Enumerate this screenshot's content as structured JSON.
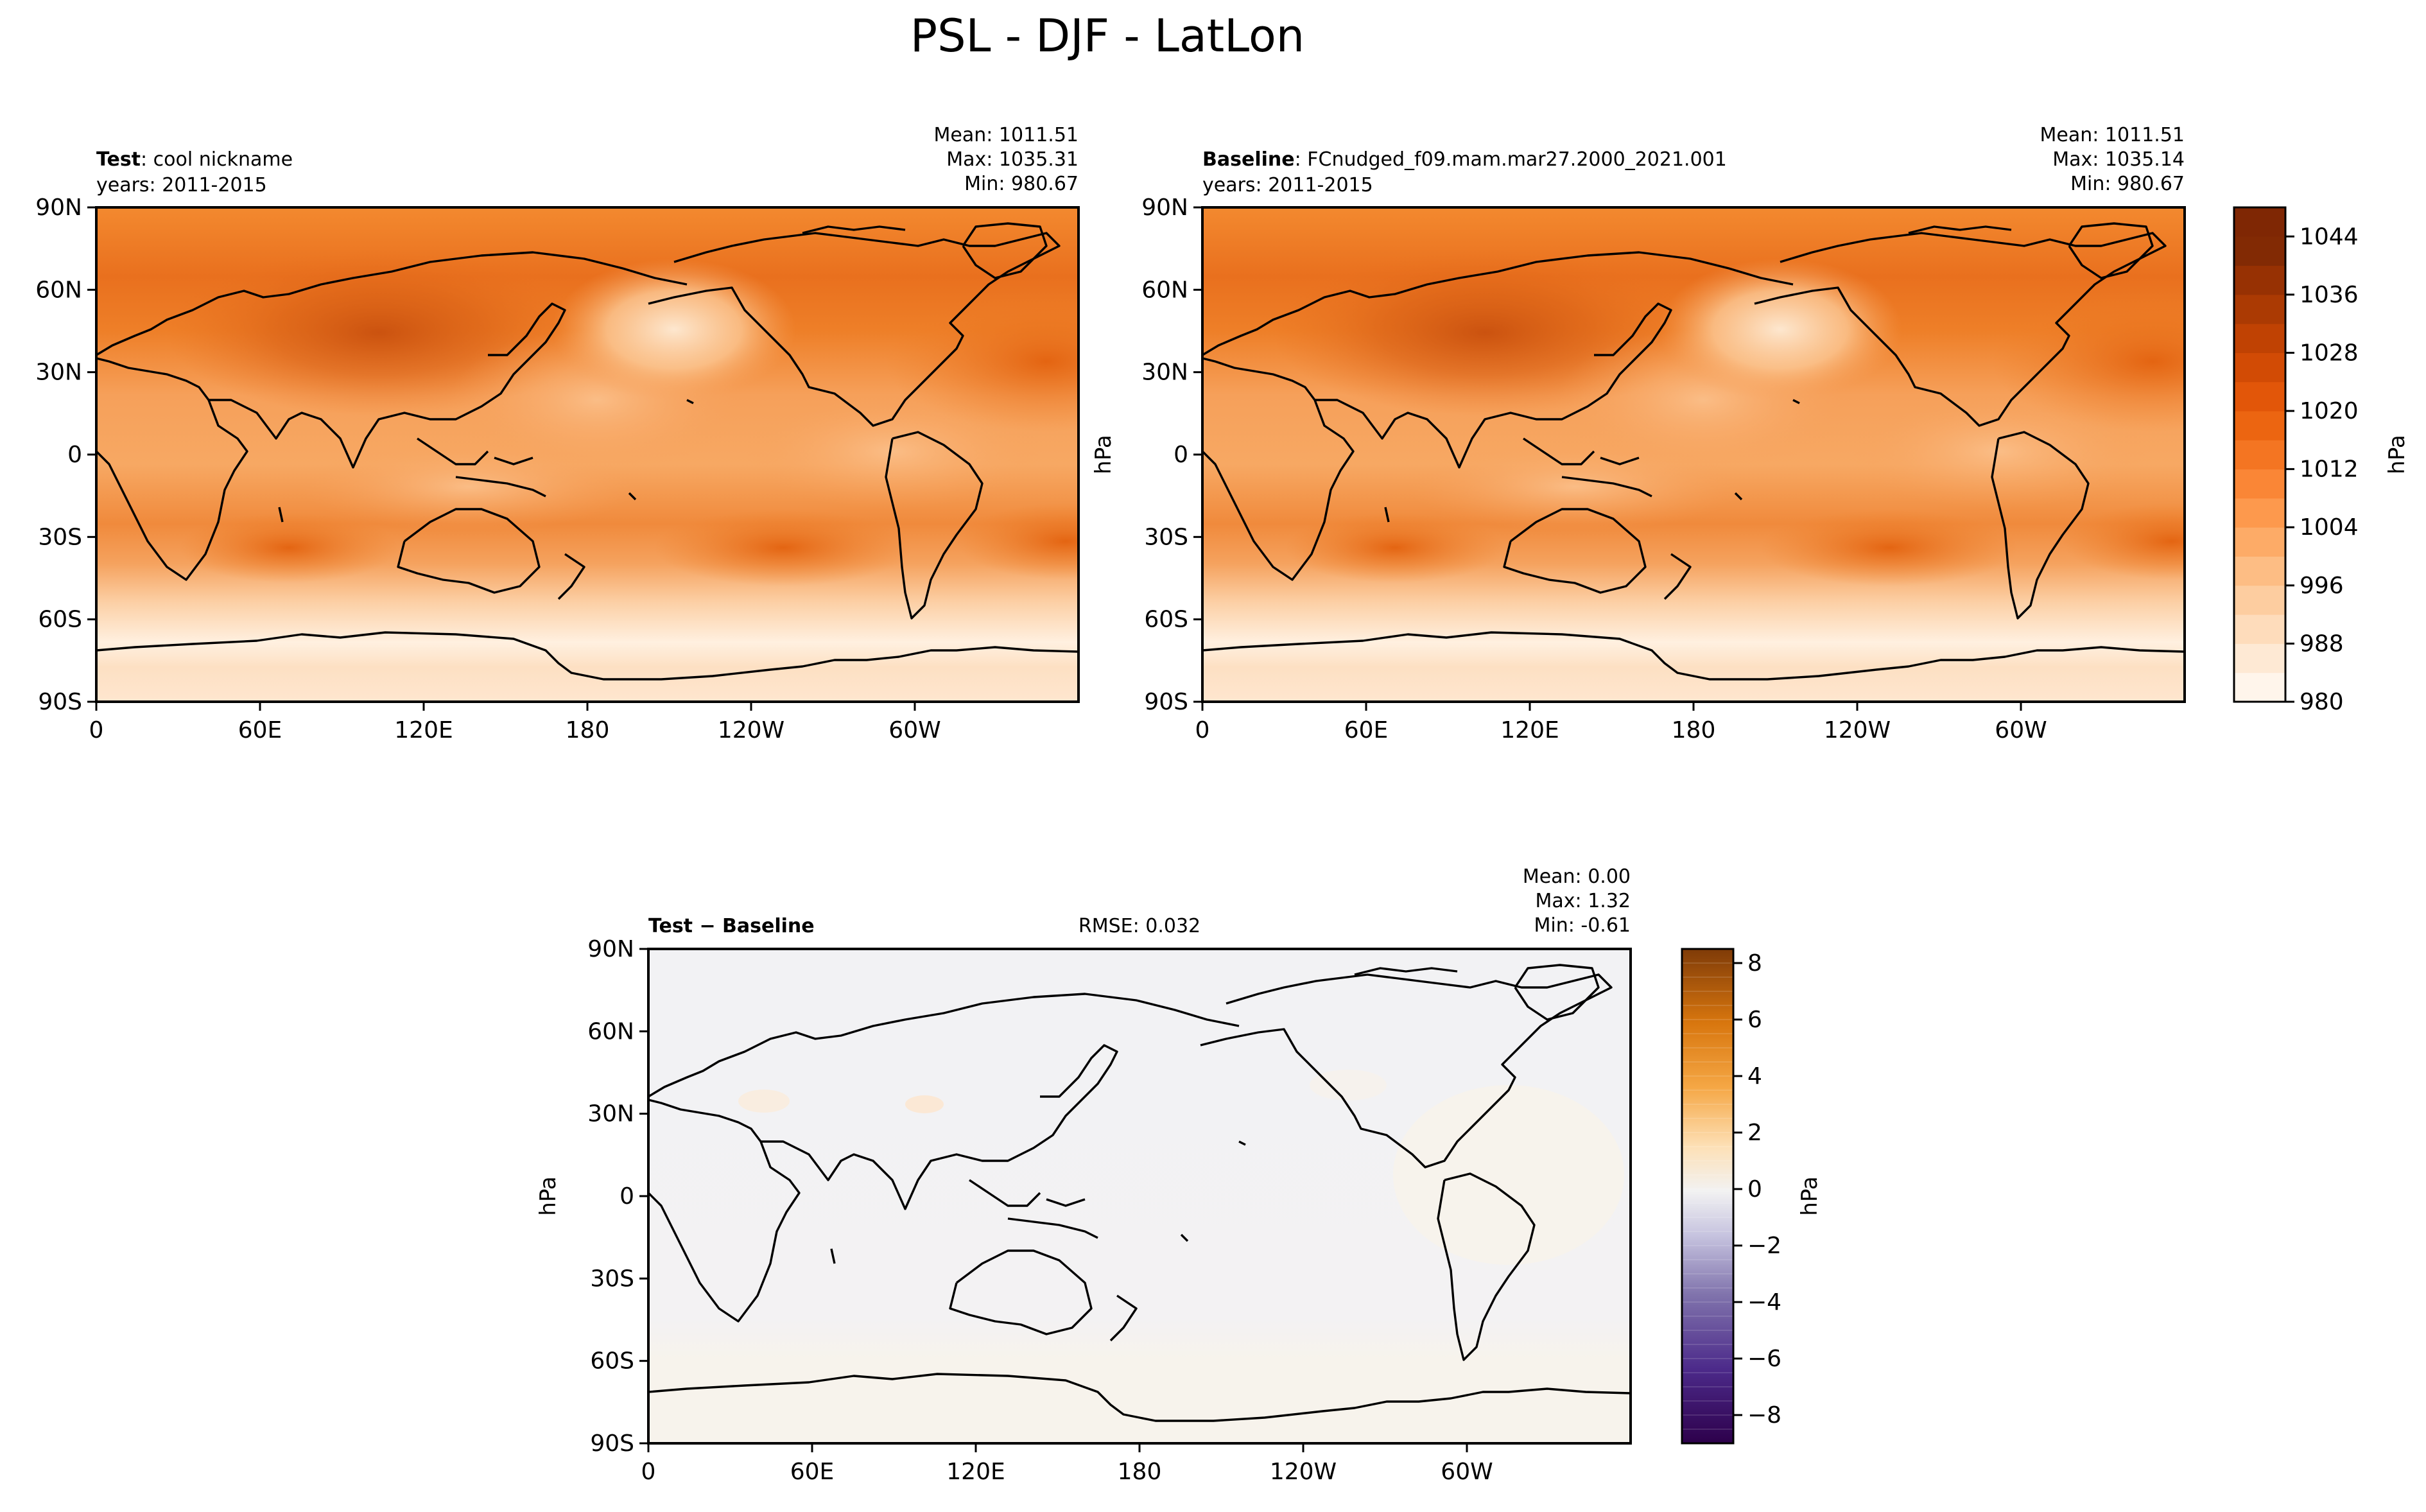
{
  "figure": {
    "title": "PSL - DJF - LatLon"
  },
  "panels": {
    "test": {
      "label_bold": "Test",
      "label_rest": ": cool nickname",
      "years": "years: 2011-2015",
      "stats": [
        "Mean: 1011.51",
        "Max: 1035.31",
        "Min: 980.67"
      ]
    },
    "baseline": {
      "label_bold": "Baseline",
      "label_rest": ": FCnudged_f09.mam.mar27.2000_2021.001",
      "years": "years: 2011-2015",
      "stats": [
        "Mean: 1011.51",
        "Max: 1035.14",
        "Min: 980.67"
      ]
    },
    "diff": {
      "label_bold": "Test − Baseline",
      "rmse": "RMSE: 0.032",
      "stats": [
        "Mean:  0.00",
        "Max:  1.32",
        "Min: -0.61"
      ]
    }
  },
  "chart_data": [
    {
      "type": "heatmap",
      "name": "test",
      "variable": "PSL",
      "units": "hPa",
      "x_ticks": [
        "0",
        "60E",
        "120E",
        "180",
        "120W",
        "60W"
      ],
      "y_ticks": [
        "90N",
        "60N",
        "30N",
        "0",
        "30S",
        "60S",
        "90S"
      ],
      "xlim": [
        0,
        360
      ],
      "ylim": [
        -90,
        90
      ],
      "stats": {
        "mean": 1011.51,
        "max": 1035.31,
        "min": 980.67
      },
      "colormap": "Oranges",
      "ylabel": "hPa"
    },
    {
      "type": "heatmap",
      "name": "baseline",
      "variable": "PSL",
      "units": "hPa",
      "x_ticks": [
        "0",
        "60E",
        "120E",
        "180",
        "120W",
        "60W"
      ],
      "y_ticks": [
        "90N",
        "60N",
        "30N",
        "0",
        "30S",
        "60S",
        "90S"
      ],
      "xlim": [
        0,
        360
      ],
      "ylim": [
        -90,
        90
      ],
      "stats": {
        "mean": 1011.51,
        "max": 1035.14,
        "min": 980.67
      },
      "colormap": "Oranges"
    },
    {
      "type": "heatmap",
      "name": "difference",
      "variable": "PSL",
      "units": "hPa",
      "x_ticks": [
        "0",
        "60E",
        "120E",
        "180",
        "120W",
        "60W"
      ],
      "y_ticks": [
        "90N",
        "60N",
        "30N",
        "0",
        "30S",
        "60S",
        "90S"
      ],
      "xlim": [
        0,
        360
      ],
      "ylim": [
        -90,
        90
      ],
      "rmse": 0.032,
      "stats": {
        "mean": 0.0,
        "max": 1.32,
        "min": -0.61
      },
      "colormap": "PuOr_r",
      "ylabel": "hPa"
    }
  ],
  "colorbars": {
    "main": {
      "label": "hPa",
      "vmin": 980,
      "vmax": 1048,
      "step": 4,
      "ticks": [
        980,
        988,
        996,
        1004,
        1012,
        1020,
        1028,
        1036,
        1044
      ],
      "colors": [
        "#fff5eb",
        "#fee8d3",
        "#fdd8b3",
        "#fdc28c",
        "#fda762",
        "#fb8d3d",
        "#f2701d",
        "#e25609",
        "#c44103",
        "#9f3303",
        "#7f2704",
        "#fee6ce",
        "#fdd0a2",
        "#fdae6b",
        "#fd8d3c",
        "#f16913",
        "#d94801"
      ]
    },
    "diff": {
      "label": "hPa",
      "vmin": -9,
      "vmax": 8.5,
      "ticks": [
        -8,
        -6,
        -4,
        -2,
        0,
        2,
        4,
        6,
        8
      ],
      "tick_labels": [
        "−8",
        "−6",
        "−4",
        "−2",
        "0",
        "2",
        "4",
        "6",
        "8"
      ]
    }
  }
}
